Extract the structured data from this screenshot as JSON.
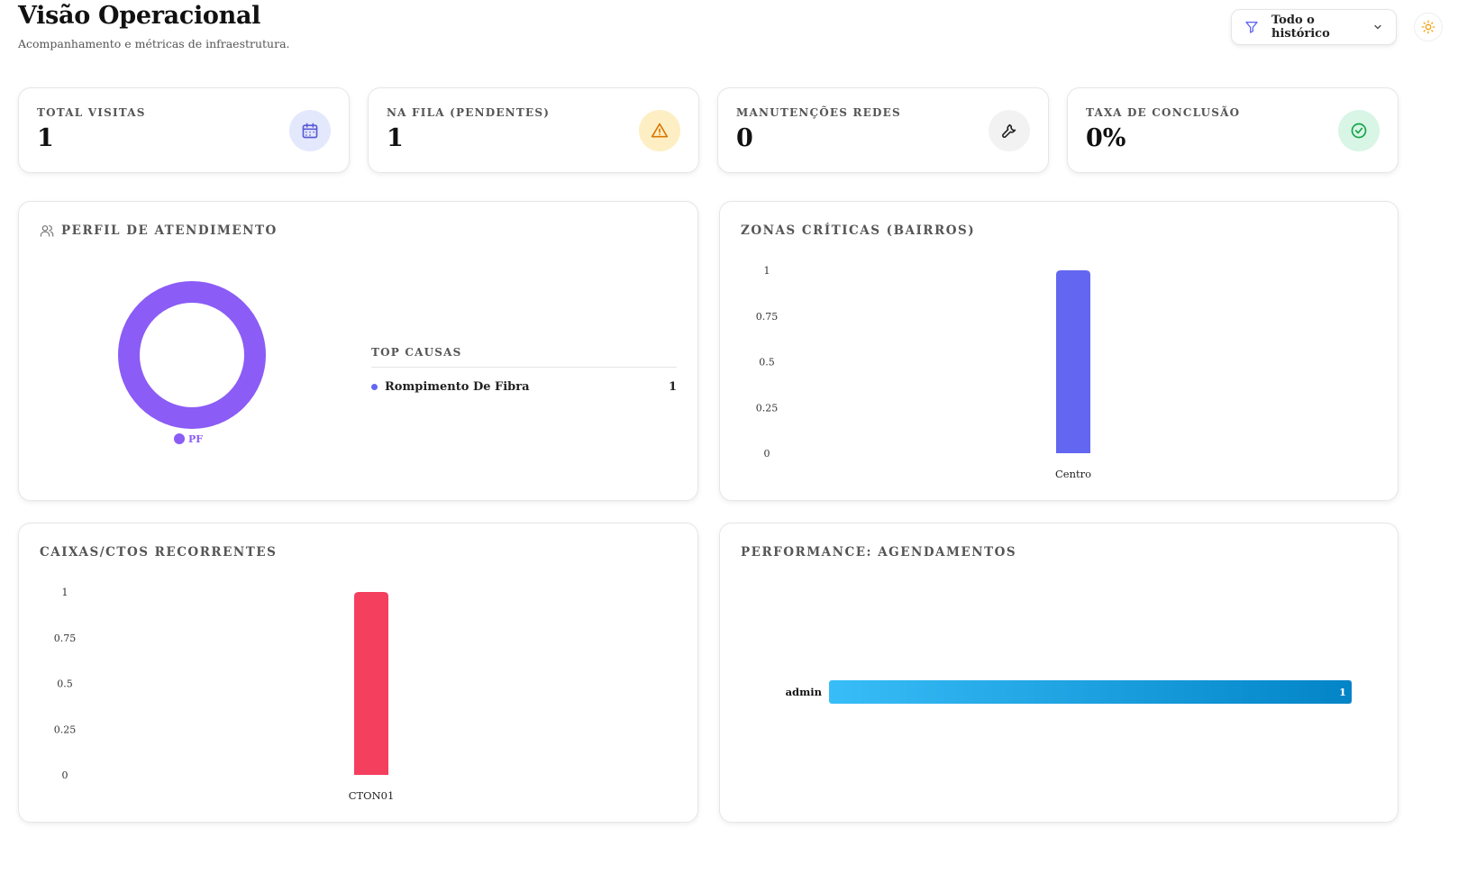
{
  "header": {
    "title": "Visão Operacional",
    "subtitle": "Acompanhamento e métricas de infraestrutura.",
    "filter_label": "Todo o histórico"
  },
  "stats": [
    {
      "label": "TOTAL VISITAS",
      "value": "1",
      "icon": "calendar-icon",
      "bg": "#e4e8fd",
      "color": "#5b5bd6"
    },
    {
      "label": "NA FILA (PENDENTES)",
      "value": "1",
      "icon": "warning-icon",
      "bg": "#fdefc3",
      "color": "#d97706"
    },
    {
      "label": "MANUTENÇÕES REDES",
      "value": "0",
      "icon": "wrench-icon",
      "bg": "#f2f2f2",
      "color": "#222222"
    },
    {
      "label": "TAXA DE CONCLUSÃO",
      "value": "0%",
      "icon": "check-circle-icon",
      "bg": "#d8f5e6",
      "color": "#16a34a"
    }
  ],
  "perfil": {
    "title": "PERFIL DE ATENDIMENTO",
    "top_causas_title": "TOP CAUSAS",
    "causas": [
      {
        "label": "Rompimento De Fibra",
        "value": "1"
      }
    ]
  },
  "zonas": {
    "title": "ZONAS CRÍTICAS (BAIRROS)"
  },
  "caixas": {
    "title": "CAIXAS/CTOS RECORRENTES"
  },
  "performance": {
    "title": "PERFORMANCE: AGENDAMENTOS"
  },
  "colors": {
    "accent": "#6366f1",
    "purple": "#8b5cf6",
    "red": "#f43f5e",
    "blue_start": "#38bdf8",
    "blue_end": "#0284c7"
  },
  "chart_data": [
    {
      "type": "pie",
      "donut": true,
      "categories": [
        "PF"
      ],
      "values": [
        1
      ],
      "colors": [
        "#8b5cf6"
      ]
    },
    {
      "type": "bar",
      "categories": [
        "Centro"
      ],
      "values": [
        1
      ],
      "ylim": [
        0,
        1
      ],
      "yticks": [
        "0",
        "0.25",
        "0.5",
        "0.75",
        "1"
      ],
      "color": "#6366f1"
    },
    {
      "type": "bar",
      "categories": [
        "CTON01"
      ],
      "values": [
        1
      ],
      "ylim": [
        0,
        1
      ],
      "yticks": [
        "0",
        "0.25",
        "0.5",
        "0.75",
        "1"
      ],
      "color": "#f43f5e"
    },
    {
      "type": "bar",
      "orientation": "horizontal",
      "categories": [
        "admin"
      ],
      "values": [
        1
      ],
      "xlim": [
        0,
        1
      ]
    }
  ]
}
